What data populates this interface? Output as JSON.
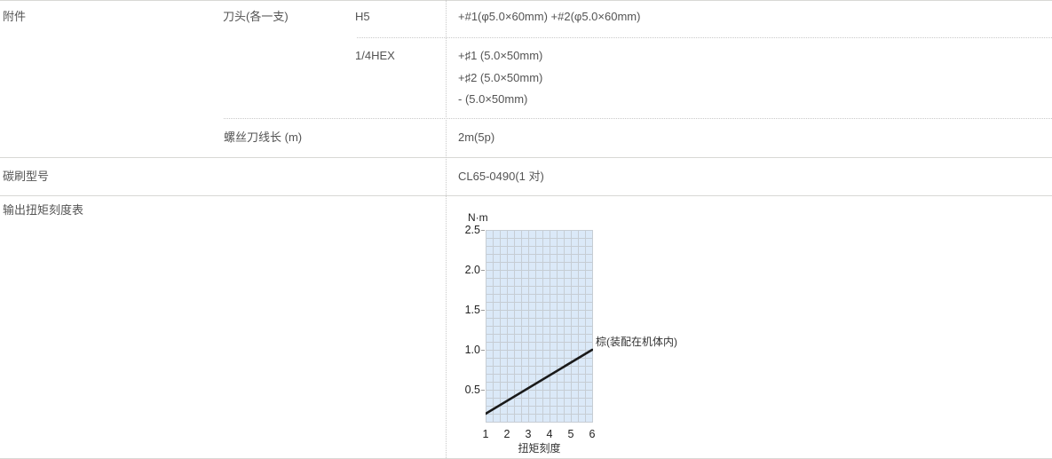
{
  "colors": {
    "table_text": "#545454",
    "divider_solid": "#d8d8d5",
    "divider_dotted": "#c9c9c9",
    "chart_plot_bg": "#dbe9f8",
    "chart_grid": "#c6cdd4",
    "chart_line": "#1a1a1a",
    "chart_text": "#222222"
  },
  "spec_table": {
    "accessories": {
      "label": "附件",
      "bits": {
        "label": "刀头(各一支)",
        "groups": [
          {
            "type": "H5",
            "items": [
              "+#1(φ5.0×60mm) +#2(φ5.0×60mm)"
            ]
          },
          {
            "type": "1/4HEX",
            "items": [
              "+♯1 (5.0×50mm)",
              "+♯2 (5.0×50mm)",
              "- (5.0×50mm)"
            ]
          }
        ]
      },
      "cord_length": {
        "label": "螺丝刀线长 (m)",
        "value": "2m(5p)"
      }
    },
    "carbon_brush": {
      "label": "碳刷型号",
      "value": "CL65-0490(1 对)"
    },
    "torque_chart_row": {
      "label": "输出扭矩刻度表"
    }
  },
  "chart_data": {
    "type": "line",
    "title": "输出扭矩刻度表",
    "ylabel": "N·m",
    "xlabel": "扭矩刻度",
    "xlim": [
      1,
      6
    ],
    "ylim": [
      0.1,
      2.5
    ],
    "xticks": [
      1,
      2,
      3,
      4,
      5,
      6
    ],
    "yticks": [
      0.5,
      1.0,
      1.5,
      2.0,
      2.5
    ],
    "grid": true,
    "x_minor_divisions_per_unit": 3,
    "y_minor_step": 0.1,
    "legend_position": "right-of-line-end",
    "series": [
      {
        "name": "棕(装配在机体内)",
        "color": "#1a1a1a",
        "points": [
          [
            1,
            0.2
          ],
          [
            6,
            1.0
          ]
        ]
      }
    ]
  }
}
